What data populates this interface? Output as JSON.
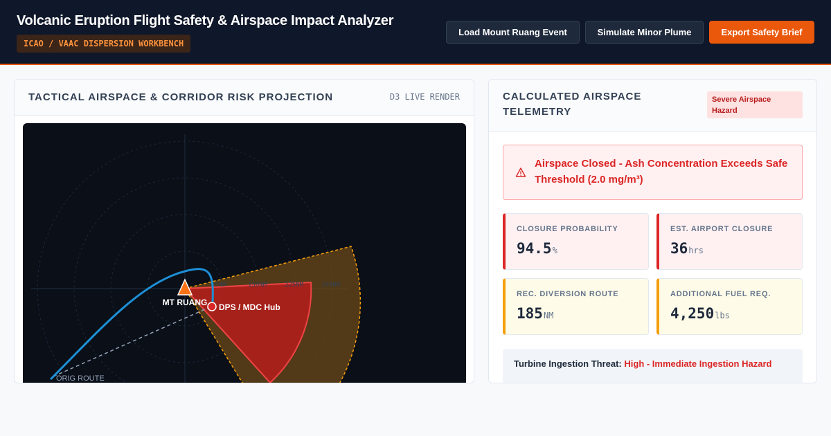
{
  "header": {
    "title": "Volcanic Eruption Flight Safety & Airspace Impact Analyzer",
    "badge": "ICAO / VAAC DISPERSION WORKBENCH",
    "buttons": {
      "load_event": "Load Mount Ruang Event",
      "simulate": "Simulate Minor Plume",
      "export": "Export Safety Brief"
    }
  },
  "left_panel": {
    "title": "TACTICAL AIRSPACE & CORRIDOR RISK PROJECTION",
    "render_label": "D3 LIVE RENDER",
    "map": {
      "volcano_label": "MT RUANG",
      "hub_label": "DPS / MDC Hub",
      "ring_labels": [
        "75NM",
        "150NM",
        "225NM",
        "300NM"
      ],
      "route_label": "ORIG ROUTE",
      "colors": {
        "outer_plume": "#6b4a18",
        "outer_plume_border": "#f59e0b",
        "core_plume": "#b91c1c",
        "core_plume_border": "#ef4444",
        "flight_path": "#1d8fd6",
        "volcano_marker": "#f97316"
      }
    }
  },
  "right_panel": {
    "title": "CALCULATED AIRSPACE TELEMETRY",
    "status_badge": "Severe Airspace Hazard",
    "alert": {
      "icon": "warning-triangle-icon",
      "text": "Airspace Closed - Ash Concentration Exceeds Safe Threshold (2.0 mg/m³)"
    },
    "metrics": [
      {
        "label": "CLOSURE PROBABILITY",
        "value": "94.5",
        "unit": "%",
        "tone": "red"
      },
      {
        "label": "EST. AIRPORT CLOSURE",
        "value": "36",
        "unit": "hrs",
        "tone": "red"
      },
      {
        "label": "REC. DIVERSION ROUTE",
        "value": "185",
        "unit": "NM",
        "tone": "amber"
      },
      {
        "label": "ADDITIONAL FUEL REQ.",
        "value": "4,250",
        "unit": "lbs",
        "tone": "amber"
      }
    ],
    "threat": {
      "label": "Turbine Ingestion Threat:",
      "value": "High - Immediate Ingestion Hazard"
    }
  }
}
